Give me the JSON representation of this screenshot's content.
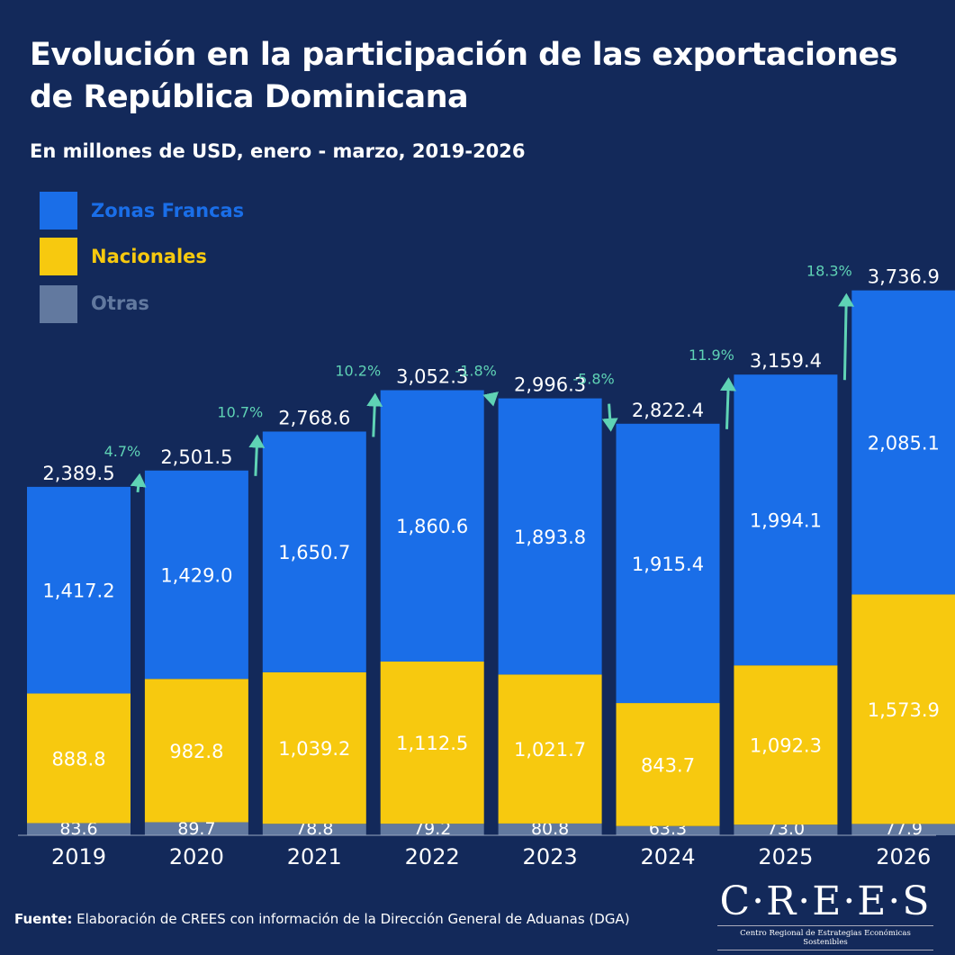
{
  "title": "Evolución en la participación de las exportaciones de República Dominicana",
  "subtitle": "En millones de USD, enero - marzo, 2019-2026",
  "source_label": "Fuente:",
  "source_text": " Elaboración de CREES con información de la Dirección General de Aduanas (DGA)",
  "logo": {
    "name": "C·R·E·E·S",
    "tagline": "Centro Regional de Estrategias Económicas Sostenibles"
  },
  "colors": {
    "background": "#13295a",
    "zonas_francas": "#1a6ee8",
    "nacionales": "#f7c90f",
    "otras": "#62799f",
    "growth": "#5fd3b5"
  },
  "chart_data": {
    "type": "bar",
    "stacked": true,
    "title": "Evolución en la participación de las exportaciones de República Dominicana",
    "subtitle": "En millones de USD, enero - marzo, 2019-2026",
    "categories": [
      "2019",
      "2020",
      "2021",
      "2022",
      "2023",
      "2024",
      "2025",
      "2026"
    ],
    "series": [
      {
        "name": "Otras",
        "values": [
          83.6,
          89.7,
          78.8,
          79.2,
          80.8,
          63.3,
          73.0,
          77.9
        ],
        "labels": [
          "83.6",
          "89.7",
          "78.8",
          "79.2",
          "80.8",
          "63.3",
          "73.0",
          "77.9"
        ]
      },
      {
        "name": "Nacionales",
        "values": [
          888.8,
          982.8,
          1039.2,
          1112.5,
          1021.7,
          843.7,
          1092.3,
          1573.9
        ],
        "labels": [
          "888.8",
          "982.8",
          "1,039.2",
          "1,112.5",
          "1,021.7",
          "843.7",
          "1,092.3",
          "1,573.9"
        ]
      },
      {
        "name": "Zonas Francas",
        "values": [
          1417.2,
          1429.0,
          1650.7,
          1860.6,
          1893.8,
          1915.4,
          1994.1,
          2085.1
        ],
        "labels": [
          "1,417.2",
          "1,429.0",
          "1,650.7",
          "1,860.6",
          "1,893.8",
          "1,915.4",
          "1,994.1",
          "2,085.1"
        ]
      }
    ],
    "totals": [
      2389.5,
      2501.5,
      2768.6,
      3052.3,
      2996.3,
      2822.4,
      3159.4,
      3736.9
    ],
    "total_labels": [
      "2,389.5",
      "2,501.5",
      "2,768.6",
      "3,052.3",
      "2,996.3",
      "2,822.4",
      "3,159.4",
      "3,736.9"
    ],
    "growth_labels": [
      "4.7%",
      "10.7%",
      "10.2%",
      "-1.8%",
      "-5.8%",
      "11.9%",
      "18.3%"
    ],
    "legend": [
      "Zonas Francas",
      "Nacionales",
      "Otras"
    ],
    "legend_position": "top-left",
    "grid": false
  }
}
